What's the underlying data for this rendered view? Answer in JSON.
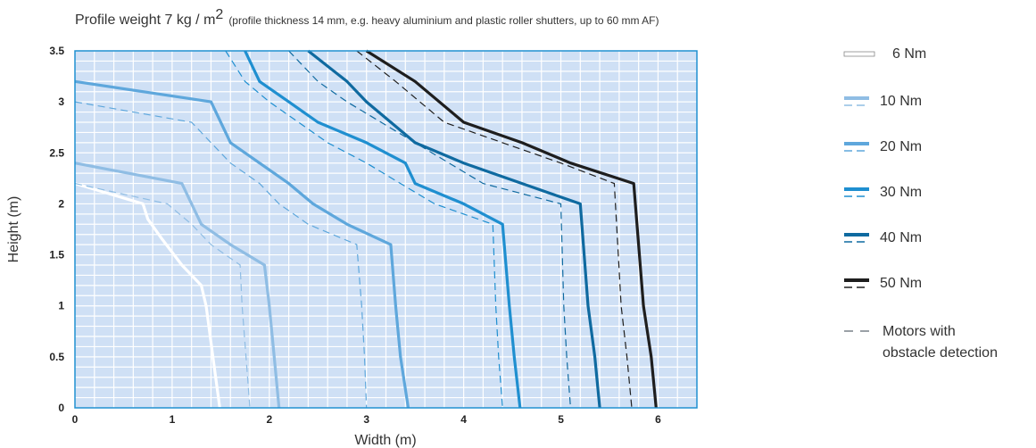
{
  "chart_data": {
    "type": "line",
    "title_main": "Profile weight 7 kg / m",
    "title_sup": "2",
    "subtitle": "(profile thickness 14 mm, e.g. heavy aluminium and plastic roller shutters, up to 60 mm AF)",
    "xlabel": "Width (m)",
    "ylabel": "Height (m)",
    "xlim": [
      0,
      6.4
    ],
    "ylim": [
      0,
      3.5
    ],
    "x_ticks": [
      "0",
      "1",
      "2",
      "3",
      "4",
      "5",
      "6"
    ],
    "y_ticks": [
      "0",
      "0.5",
      "1",
      "1.5",
      "2",
      "2.5",
      "3",
      "3.5"
    ],
    "grid": true,
    "background_color": "#cfe0f5",
    "legend_position": "right",
    "series": [
      {
        "name": "6 Nm",
        "color": "#ffffff",
        "solid": [
          [
            0,
            2.2
          ],
          [
            0.7,
            2.0
          ],
          [
            0.75,
            1.85
          ],
          [
            0.9,
            1.65
          ],
          [
            1.1,
            1.4
          ],
          [
            1.3,
            1.2
          ],
          [
            1.35,
            1.0
          ],
          [
            1.42,
            0.5
          ],
          [
            1.49,
            0.0
          ]
        ],
        "dashed": []
      },
      {
        "name": "10 Nm",
        "color": "#8fbde4",
        "solid": [
          [
            0,
            2.4
          ],
          [
            1.1,
            2.2
          ],
          [
            1.3,
            1.8
          ],
          [
            1.6,
            1.6
          ],
          [
            1.95,
            1.4
          ],
          [
            2.0,
            1.0
          ],
          [
            2.05,
            0.5
          ],
          [
            2.1,
            0.0
          ]
        ],
        "dashed": [
          [
            0,
            2.2
          ],
          [
            0.95,
            2.0
          ],
          [
            1.2,
            1.8
          ],
          [
            1.4,
            1.6
          ],
          [
            1.7,
            1.4
          ],
          [
            1.72,
            1.0
          ],
          [
            1.76,
            0.5
          ],
          [
            1.8,
            0.0
          ]
        ]
      },
      {
        "name": "20 Nm",
        "color": "#5ea7dc",
        "solid": [
          [
            0,
            3.2
          ],
          [
            1.4,
            3.0
          ],
          [
            1.6,
            2.6
          ],
          [
            1.9,
            2.4
          ],
          [
            2.2,
            2.2
          ],
          [
            2.45,
            2.0
          ],
          [
            2.8,
            1.8
          ],
          [
            3.25,
            1.6
          ],
          [
            3.3,
            1.0
          ],
          [
            3.35,
            0.5
          ],
          [
            3.43,
            0.0
          ]
        ],
        "dashed": [
          [
            0,
            3.0
          ],
          [
            1.2,
            2.8
          ],
          [
            1.4,
            2.6
          ],
          [
            1.6,
            2.4
          ],
          [
            1.9,
            2.2
          ],
          [
            2.1,
            2.0
          ],
          [
            2.4,
            1.8
          ],
          [
            2.9,
            1.6
          ],
          [
            2.95,
            1.0
          ],
          [
            2.98,
            0.5
          ],
          [
            3.0,
            0.0
          ]
        ]
      },
      {
        "name": "30 Nm",
        "color": "#1f8fd0",
        "solid": [
          [
            1.75,
            3.5
          ],
          [
            1.9,
            3.2
          ],
          [
            2.2,
            3.0
          ],
          [
            2.5,
            2.8
          ],
          [
            3.0,
            2.6
          ],
          [
            3.4,
            2.4
          ],
          [
            3.5,
            2.2
          ],
          [
            4.0,
            2.0
          ],
          [
            4.4,
            1.8
          ],
          [
            4.47,
            1.0
          ],
          [
            4.52,
            0.5
          ],
          [
            4.58,
            0.0
          ]
        ],
        "dashed": [
          [
            1.55,
            3.5
          ],
          [
            1.75,
            3.2
          ],
          [
            2.0,
            3.0
          ],
          [
            2.3,
            2.8
          ],
          [
            2.6,
            2.6
          ],
          [
            3.0,
            2.4
          ],
          [
            3.35,
            2.2
          ],
          [
            3.7,
            2.0
          ],
          [
            4.3,
            1.8
          ],
          [
            4.33,
            1.0
          ],
          [
            4.36,
            0.5
          ],
          [
            4.4,
            0.0
          ]
        ]
      },
      {
        "name": "40 Nm",
        "color": "#0f6aa0",
        "solid": [
          [
            2.4,
            3.5
          ],
          [
            2.8,
            3.2
          ],
          [
            3.0,
            3.0
          ],
          [
            3.5,
            2.6
          ],
          [
            4.0,
            2.4
          ],
          [
            4.6,
            2.2
          ],
          [
            5.2,
            2.0
          ],
          [
            5.28,
            1.0
          ],
          [
            5.35,
            0.5
          ],
          [
            5.4,
            0.0
          ]
        ],
        "dashed": [
          [
            2.2,
            3.5
          ],
          [
            2.5,
            3.2
          ],
          [
            2.8,
            3.0
          ],
          [
            3.5,
            2.6
          ],
          [
            4.2,
            2.2
          ],
          [
            5.0,
            2.0
          ],
          [
            5.03,
            1.0
          ],
          [
            5.06,
            0.5
          ],
          [
            5.1,
            0.0
          ]
        ]
      },
      {
        "name": "50 Nm",
        "color": "#1e1e1e",
        "solid": [
          [
            3.0,
            3.5
          ],
          [
            3.5,
            3.2
          ],
          [
            4.0,
            2.8
          ],
          [
            4.6,
            2.6
          ],
          [
            5.1,
            2.4
          ],
          [
            5.75,
            2.2
          ],
          [
            5.85,
            1.0
          ],
          [
            5.93,
            0.5
          ],
          [
            5.98,
            0.0
          ]
        ],
        "dashed": [
          [
            2.9,
            3.5
          ],
          [
            3.3,
            3.2
          ],
          [
            3.8,
            2.8
          ],
          [
            4.4,
            2.6
          ],
          [
            5.0,
            2.4
          ],
          [
            5.55,
            2.2
          ],
          [
            5.62,
            1.0
          ],
          [
            5.68,
            0.5
          ],
          [
            5.73,
            0.0
          ]
        ]
      }
    ],
    "legend_obstacle": [
      "Motors with",
      "obstacle detection"
    ],
    "legend_obstacle_color": "#9aa0a6"
  }
}
